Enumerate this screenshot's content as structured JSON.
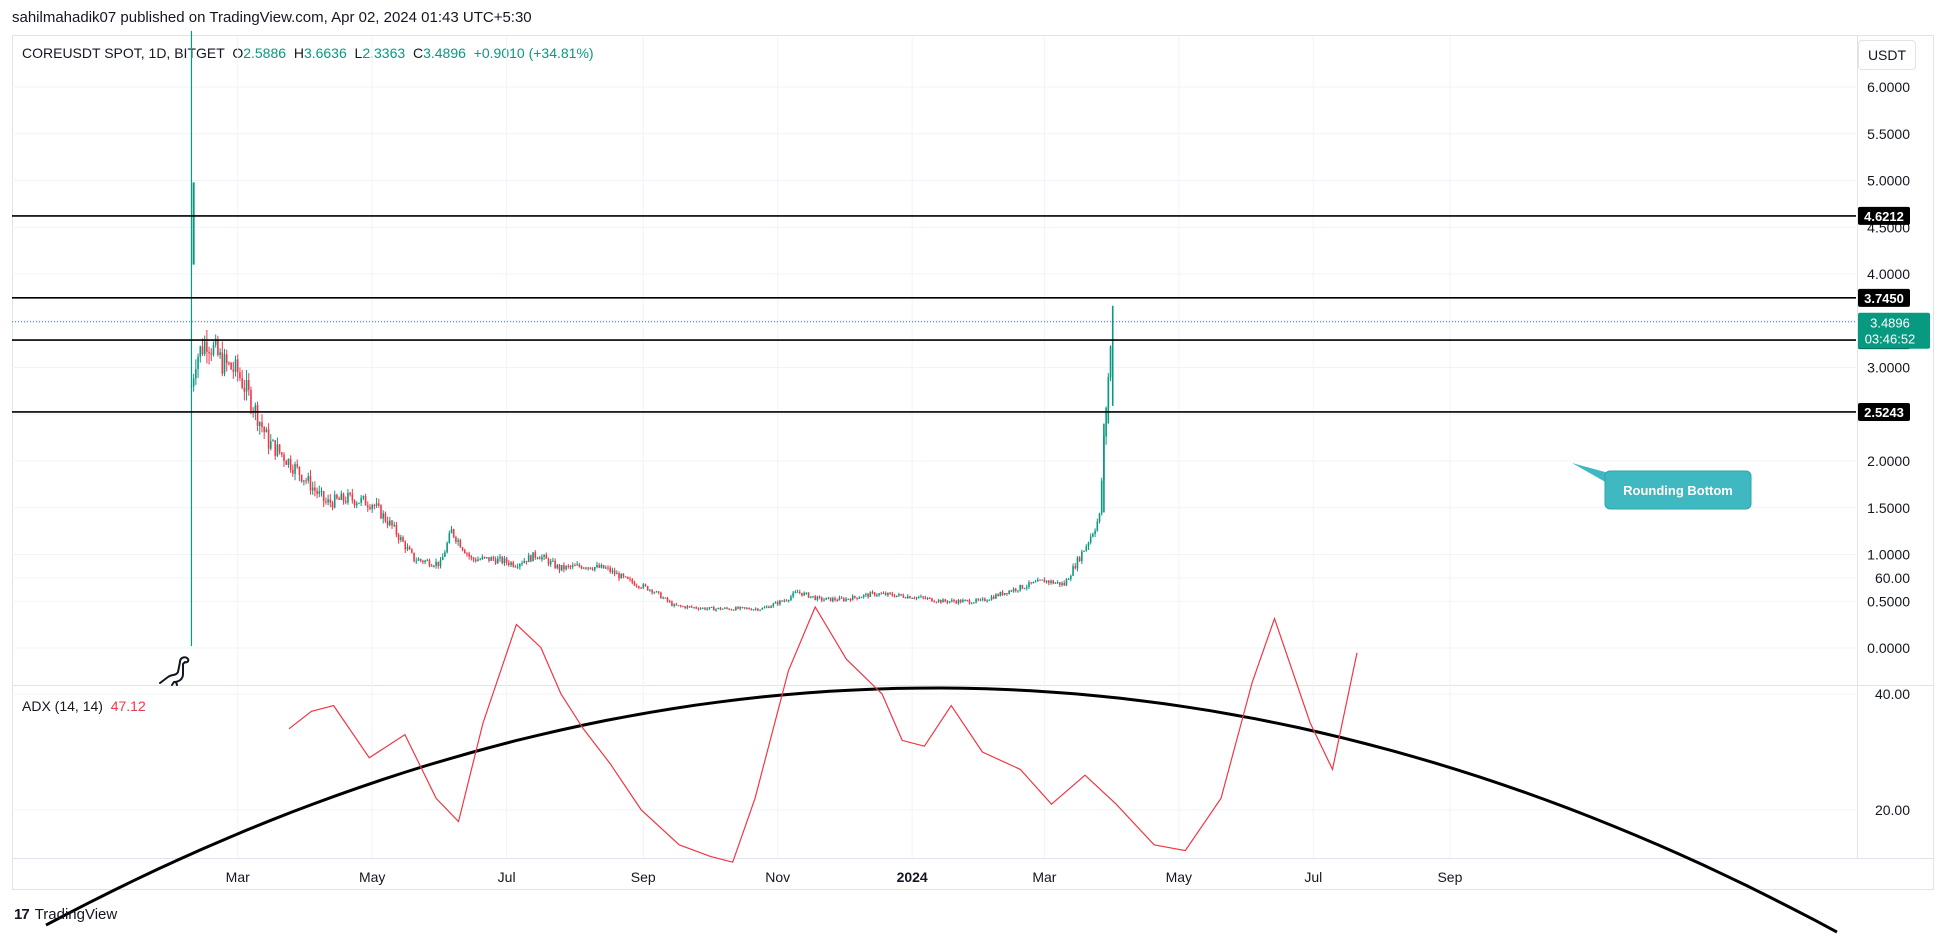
{
  "header": {
    "publish_info": "sahilmahadik07 published on TradingView.com, Apr 02, 2024 01:43 UTC+5:30"
  },
  "legend": {
    "symbol": "COREUSDT SPOT, 1D, BITGET",
    "o_label": "O",
    "o_value": "2.5886",
    "h_label": "H",
    "h_value": "3.6636",
    "l_label": "L",
    "l_value": "2.3363",
    "c_label": "C",
    "c_value": "3.4896",
    "change": "+0.9010 (+34.81%)"
  },
  "adx_legend": {
    "label": "ADX (14, 14)",
    "value": "47.12"
  },
  "currency_button": "USDT",
  "brand": {
    "name": "TradingView",
    "logo": "17"
  },
  "colors": {
    "up": "#089981",
    "down": "#f23645",
    "adx": "#f23645",
    "level_line": "#000000",
    "annotation_bg": "#3fb8c1",
    "price_badge": "#089981"
  },
  "icons": [
    "dinosaur-mascot-icon",
    "tradingview-logo-icon"
  ],
  "chart_data": [
    {
      "type": "candlestick",
      "title": "COREUSDT SPOT, 1D, BITGET",
      "y_ticks": [
        "6.0000",
        "5.5000",
        "5.0000",
        "4.5000",
        "4.0000",
        "3.5000",
        "3.0000",
        "2.5000",
        "2.0000",
        "1.5000",
        "1.0000",
        "0.5000",
        "0.0000"
      ],
      "x_ticks": [
        "Mar",
        "May",
        "Jul",
        "Sep",
        "Nov",
        "2024",
        "Mar",
        "May",
        "Jul",
        "Sep"
      ],
      "ylim": [
        0,
        6.4
      ],
      "last_price": {
        "value": "3.4896",
        "countdown": "03:46:52"
      },
      "levels": [
        "4.6212",
        "3.7450",
        "3.2932",
        "2.5243"
      ],
      "annotation": "Rounding Bottom",
      "curve": "rounding-bottom parabola",
      "close_series": [
        {
          "date": "2023-02-08",
          "v": 2.8
        },
        {
          "date": "2023-02-10",
          "v": 3.1
        },
        {
          "date": "2023-02-15",
          "v": 3.3
        },
        {
          "date": "2023-02-22",
          "v": 3.05
        },
        {
          "date": "2023-03-01",
          "v": 2.95
        },
        {
          "date": "2023-03-08",
          "v": 2.6
        },
        {
          "date": "2023-03-15",
          "v": 2.2
        },
        {
          "date": "2023-03-22",
          "v": 2.05
        },
        {
          "date": "2023-04-01",
          "v": 1.8
        },
        {
          "date": "2023-04-10",
          "v": 1.55
        },
        {
          "date": "2023-04-20",
          "v": 1.6
        },
        {
          "date": "2023-05-01",
          "v": 1.55
        },
        {
          "date": "2023-05-10",
          "v": 1.3
        },
        {
          "date": "2023-05-20",
          "v": 0.95
        },
        {
          "date": "2023-06-01",
          "v": 0.9
        },
        {
          "date": "2023-06-06",
          "v": 1.25
        },
        {
          "date": "2023-06-15",
          "v": 0.95
        },
        {
          "date": "2023-06-25",
          "v": 0.95
        },
        {
          "date": "2023-07-05",
          "v": 0.9
        },
        {
          "date": "2023-07-15",
          "v": 1.0
        },
        {
          "date": "2023-07-25",
          "v": 0.85
        },
        {
          "date": "2023-08-05",
          "v": 0.88
        },
        {
          "date": "2023-08-15",
          "v": 0.85
        },
        {
          "date": "2023-08-25",
          "v": 0.72
        },
        {
          "date": "2023-09-05",
          "v": 0.62
        },
        {
          "date": "2023-09-15",
          "v": 0.45
        },
        {
          "date": "2023-10-01",
          "v": 0.42
        },
        {
          "date": "2023-10-15",
          "v": 0.42
        },
        {
          "date": "2023-10-25",
          "v": 0.42
        },
        {
          "date": "2023-11-05",
          "v": 0.52
        },
        {
          "date": "2023-11-10",
          "v": 0.6
        },
        {
          "date": "2023-11-20",
          "v": 0.52
        },
        {
          "date": "2023-12-01",
          "v": 0.52
        },
        {
          "date": "2023-12-15",
          "v": 0.58
        },
        {
          "date": "2024-01-01",
          "v": 0.55
        },
        {
          "date": "2024-01-15",
          "v": 0.5
        },
        {
          "date": "2024-02-01",
          "v": 0.5
        },
        {
          "date": "2024-02-15",
          "v": 0.62
        },
        {
          "date": "2024-03-01",
          "v": 0.72
        },
        {
          "date": "2024-03-10",
          "v": 0.68
        },
        {
          "date": "2024-03-20",
          "v": 1.1
        },
        {
          "date": "2024-03-26",
          "v": 1.4
        },
        {
          "date": "2024-03-29",
          "v": 2.6
        },
        {
          "date": "2024-04-01",
          "v": 3.49
        }
      ]
    },
    {
      "type": "line",
      "title": "ADX (14, 14)",
      "y_ticks": [
        "60.00",
        "40.00",
        "20.00"
      ],
      "ylim": [
        0,
        65
      ],
      "series": [
        {
          "name": "ADX",
          "points": [
            {
              "date": "2023-03-10",
              "v": 34
            },
            {
              "date": "2023-03-20",
              "v": 37
            },
            {
              "date": "2023-03-30",
              "v": 38
            },
            {
              "date": "2023-04-15",
              "v": 29
            },
            {
              "date": "2023-05-01",
              "v": 33
            },
            {
              "date": "2023-05-15",
              "v": 22
            },
            {
              "date": "2023-05-25",
              "v": 18
            },
            {
              "date": "2023-06-05",
              "v": 35
            },
            {
              "date": "2023-06-20",
              "v": 52
            },
            {
              "date": "2023-07-01",
              "v": 48
            },
            {
              "date": "2023-07-10",
              "v": 40
            },
            {
              "date": "2023-07-20",
              "v": 34
            },
            {
              "date": "2023-08-01",
              "v": 28
            },
            {
              "date": "2023-08-15",
              "v": 20
            },
            {
              "date": "2023-09-01",
              "v": 14
            },
            {
              "date": "2023-09-15",
              "v": 12
            },
            {
              "date": "2023-09-25",
              "v": 11
            },
            {
              "date": "2023-10-05",
              "v": 22
            },
            {
              "date": "2023-10-20",
              "v": 44
            },
            {
              "date": "2023-11-01",
              "v": 55
            },
            {
              "date": "2023-11-15",
              "v": 46
            },
            {
              "date": "2023-12-01",
              "v": 40
            },
            {
              "date": "2023-12-10",
              "v": 32
            },
            {
              "date": "2023-12-20",
              "v": 31
            },
            {
              "date": "2024-01-01",
              "v": 38
            },
            {
              "date": "2024-01-15",
              "v": 30
            },
            {
              "date": "2024-02-01",
              "v": 27
            },
            {
              "date": "2024-02-15",
              "v": 21
            },
            {
              "date": "2024-03-01",
              "v": 26
            },
            {
              "date": "2024-03-15",
              "v": 21
            },
            {
              "date": "2024-04-01",
              "v": 14
            },
            {
              "date": "2024-04-15",
              "v": 13
            },
            {
              "date": "2024-05-01",
              "v": 22
            },
            {
              "date": "2024-05-15",
              "v": 42
            },
            {
              "date": "2024-05-25",
              "v": 53
            },
            {
              "date": "2024-06-10",
              "v": 35
            },
            {
              "date": "2024-06-20",
              "v": 27
            },
            {
              "date": "2024-07-01",
              "v": 47.12
            }
          ]
        }
      ]
    }
  ]
}
